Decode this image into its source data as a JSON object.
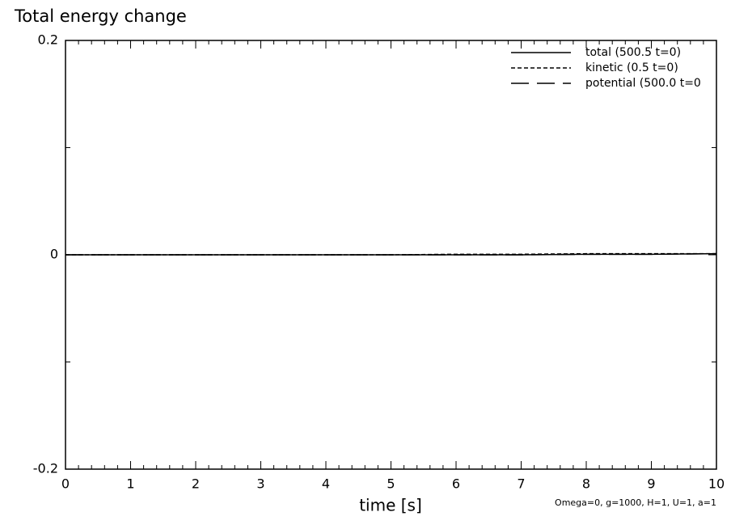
{
  "chart_data": {
    "type": "line",
    "title": "Total energy change",
    "xlabel": "time [s]",
    "annotation": "Omega=0, g=1000, H=1, U=1, a=1",
    "x": [
      0,
      1,
      2,
      3,
      4,
      5,
      6,
      7,
      8,
      9,
      10
    ],
    "series": [
      {
        "name": "total (500.5 t=0)",
        "color": "#000000",
        "dash": "solid",
        "values": [
          0,
          0,
          0,
          0,
          0,
          0,
          0,
          0,
          0.0005,
          0.0005,
          0.001
        ]
      },
      {
        "name": "kinetic (0.5 t=0)",
        "color": "#000000",
        "dash": "short",
        "values": [
          0,
          0,
          0,
          0,
          0,
          0,
          0.0005,
          0.0005,
          0.001,
          0.001,
          0.001
        ]
      },
      {
        "name": "potential (500.0 t=0",
        "color": "#000000",
        "dash": "long",
        "values": [
          0,
          0,
          0,
          0,
          0,
          0,
          0,
          0,
          0.0005,
          0.0005,
          0.001
        ]
      }
    ],
    "xlim": [
      0,
      10
    ],
    "ylim": [
      -0.2,
      0.2
    ],
    "xticks": [
      0,
      1,
      2,
      3,
      4,
      5,
      6,
      7,
      8,
      9,
      10
    ],
    "yticks": [
      -0.2,
      0,
      0.2
    ],
    "y_minor_ticks": [
      -0.1,
      0.1
    ],
    "x_minor_step": 0.2,
    "legend": "upper right"
  }
}
